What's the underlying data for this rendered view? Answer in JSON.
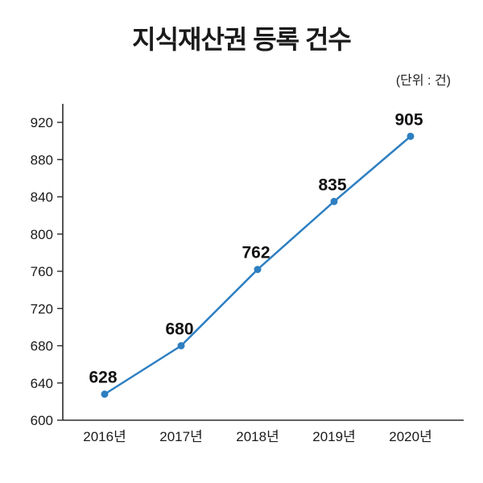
{
  "title": "지식재산권 등록 건수",
  "unit_label": "(단위 : 건)",
  "chart_data": {
    "type": "line",
    "title": "지식재산권 등록 건수",
    "subtitle": "(단위 : 건)",
    "categories": [
      "2016년",
      "2017년",
      "2018년",
      "2019년",
      "2020년"
    ],
    "values": [
      628,
      680,
      762,
      835,
      905
    ],
    "xlabel": "",
    "ylabel": "",
    "ylim": [
      600,
      940
    ],
    "yticks": [
      600,
      640,
      680,
      720,
      760,
      800,
      840,
      880,
      920
    ],
    "grid": false,
    "legend": false,
    "line_color": "#2d7fc1",
    "point_color": "#2d7fc1",
    "axis_color": "#2b2b2b",
    "tick_label_color": "#1a1a1a",
    "data_label_color": "#111111"
  }
}
